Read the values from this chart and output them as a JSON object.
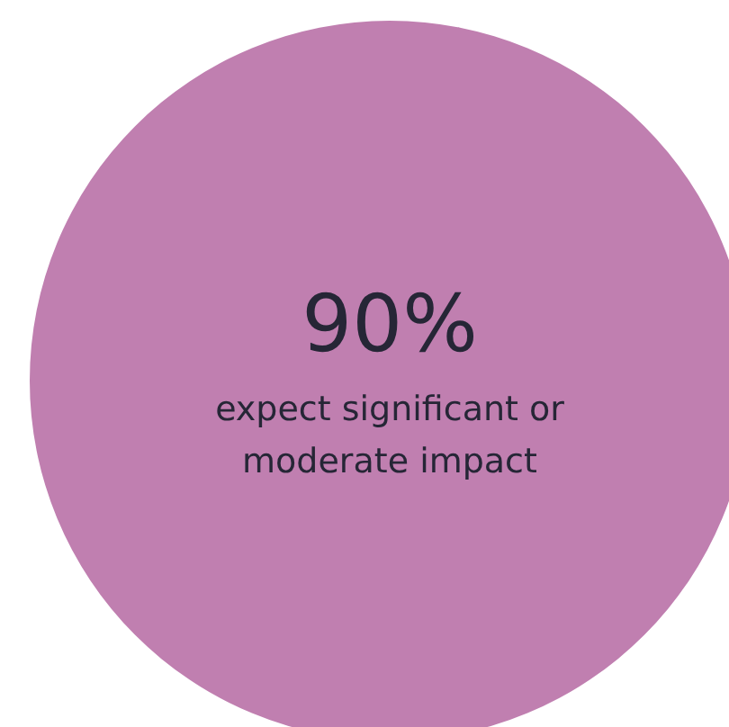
{
  "chart_data": {
    "type": "other",
    "categories": [
      "expect significant or moderate impact"
    ],
    "values": [
      90
    ],
    "value_labels": [
      "90%"
    ],
    "colors": [
      "#c07fb0"
    ]
  }
}
